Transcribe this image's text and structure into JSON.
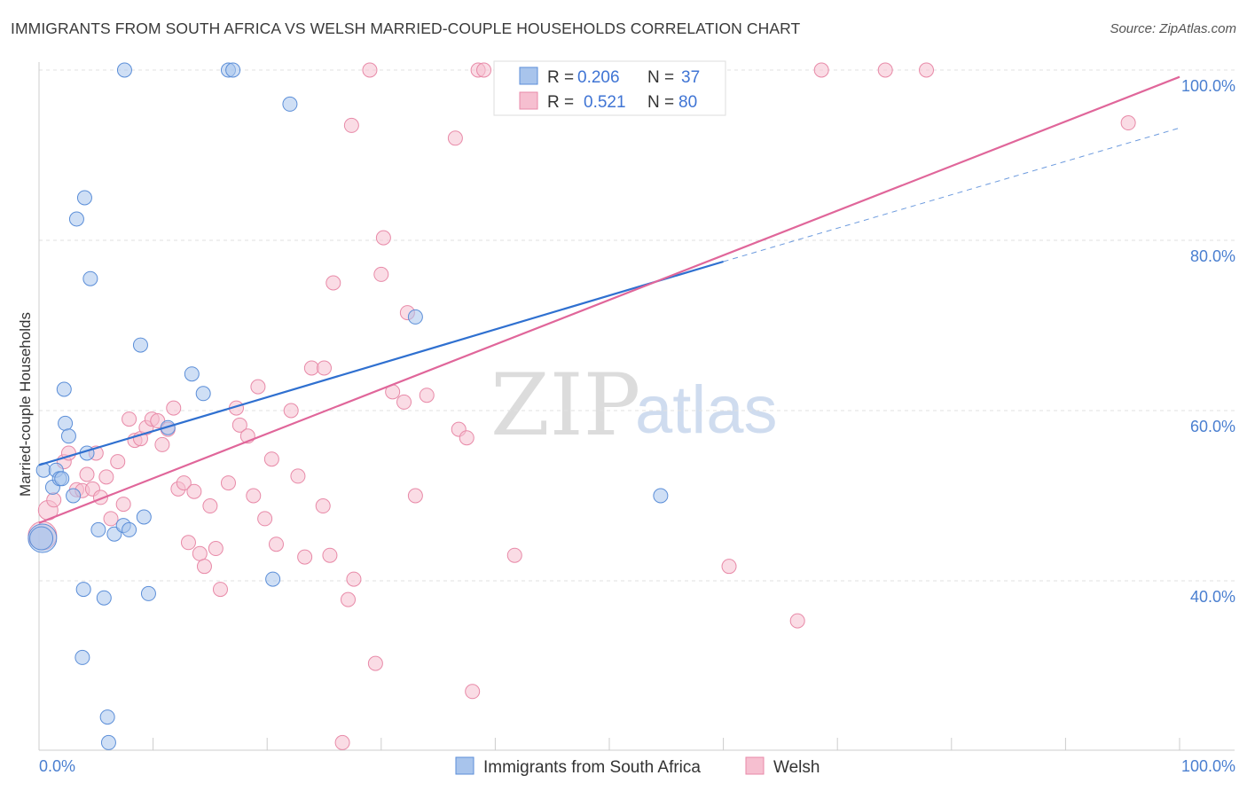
{
  "title": "IMMIGRANTS FROM SOUTH AFRICA VS WELSH MARRIED-COUPLE HOUSEHOLDS CORRELATION CHART",
  "source": "Source: ZipAtlas.com",
  "watermark": {
    "zip": "ZIP",
    "atlas": "atlas"
  },
  "legend": {
    "r_label": "R =",
    "n_label": "N =",
    "rows": [
      {
        "r": "0.206",
        "n": "37"
      },
      {
        "r": "0.521",
        "n": "80"
      }
    ]
  },
  "chart_data": {
    "type": "scatter",
    "title": "IMMIGRANTS FROM SOUTH AFRICA VS WELSH MARRIED-COUPLE HOUSEHOLDS CORRELATION CHART",
    "xlabel": "",
    "ylabel": "Married-couple Households",
    "xlim": [
      0,
      100
    ],
    "ylim": [
      20,
      102
    ],
    "x_ticks": [
      "0.0%",
      "100.0%"
    ],
    "y_ticks": [
      {
        "value": 40,
        "label": "40.0%"
      },
      {
        "value": 60,
        "label": "60.0%"
      },
      {
        "value": 80,
        "label": "80.0%"
      },
      {
        "value": 100,
        "label": "100.0%"
      }
    ],
    "grid": true,
    "legend_position": "bottom",
    "colors": {
      "blue_fill": "#a8c4ec",
      "blue_stroke": "#5b8ed8",
      "blue_line": "#2f70d0",
      "pink_fill": "#f6bfd0",
      "pink_stroke": "#e88aa8",
      "pink_line": "#e0669a",
      "tick_text": "#4a7fd0"
    },
    "series": [
      {
        "name": "Immigrants from South Africa",
        "r": 0.206,
        "n": 37,
        "trend": {
          "x0": 0,
          "y0": 53.6,
          "x1": 60,
          "y1": 77.5,
          "dashed_to_x": 100,
          "dashed_to_y": 93.2
        },
        "points": [
          [
            0.3,
            45.0,
            16
          ],
          [
            0.4,
            53.0,
            8
          ],
          [
            1.2,
            51.0,
            8
          ],
          [
            1.5,
            53.0,
            8
          ],
          [
            1.8,
            52.0,
            8
          ],
          [
            2.0,
            52.0,
            8
          ],
          [
            2.2,
            62.5,
            8
          ],
          [
            2.3,
            58.5,
            8
          ],
          [
            2.6,
            57.0,
            8
          ],
          [
            3.0,
            50.0,
            8
          ],
          [
            3.3,
            82.5,
            8
          ],
          [
            3.8,
            31.0,
            8
          ],
          [
            3.9,
            39.0,
            8
          ],
          [
            4.0,
            85.0,
            8
          ],
          [
            4.2,
            55.0,
            8
          ],
          [
            4.5,
            75.5,
            8
          ],
          [
            5.2,
            46.0,
            8
          ],
          [
            5.7,
            38.0,
            8
          ],
          [
            6.0,
            24.0,
            8
          ],
          [
            6.1,
            21.0,
            8
          ],
          [
            6.6,
            45.5,
            8
          ],
          [
            7.4,
            46.5,
            8
          ],
          [
            7.5,
            100.0,
            8
          ],
          [
            7.9,
            46.0,
            8
          ],
          [
            8.9,
            67.7,
            8
          ],
          [
            9.2,
            47.5,
            8
          ],
          [
            9.6,
            38.5,
            8
          ],
          [
            11.3,
            58.0,
            8
          ],
          [
            13.4,
            64.3,
            8
          ],
          [
            14.4,
            62.0,
            8
          ],
          [
            16.6,
            100.0,
            8
          ],
          [
            17.0,
            100.0,
            8
          ],
          [
            20.5,
            40.2,
            8
          ],
          [
            22.0,
            96.0,
            8
          ],
          [
            33.0,
            71.0,
            8
          ],
          [
            54.5,
            50.0,
            8
          ],
          [
            0.2,
            45.0,
            13
          ]
        ]
      },
      {
        "name": "Welsh",
        "r": 0.521,
        "n": 80,
        "trend": {
          "x0": 0,
          "y0": 46.8,
          "x1": 100,
          "y1": 99.2
        },
        "points": [
          [
            0.3,
            45.3,
            16
          ],
          [
            0.8,
            48.3,
            11
          ],
          [
            1.3,
            49.5,
            8
          ],
          [
            2.2,
            54.0,
            8
          ],
          [
            2.6,
            55.0,
            8
          ],
          [
            3.3,
            50.7,
            8
          ],
          [
            3.8,
            50.6,
            8
          ],
          [
            4.2,
            52.5,
            8
          ],
          [
            4.7,
            50.8,
            8
          ],
          [
            5.0,
            55.0,
            8
          ],
          [
            5.4,
            49.8,
            8
          ],
          [
            5.9,
            52.2,
            8
          ],
          [
            6.3,
            47.3,
            8
          ],
          [
            6.9,
            54.0,
            8
          ],
          [
            7.4,
            49.0,
            8
          ],
          [
            7.9,
            59.0,
            8
          ],
          [
            8.4,
            56.5,
            8
          ],
          [
            8.9,
            56.7,
            8
          ],
          [
            9.4,
            58.0,
            8
          ],
          [
            9.9,
            59.0,
            8
          ],
          [
            10.4,
            58.8,
            8
          ],
          [
            10.8,
            56.0,
            8
          ],
          [
            11.3,
            57.8,
            8
          ],
          [
            11.8,
            60.3,
            8
          ],
          [
            12.2,
            50.8,
            8
          ],
          [
            12.7,
            51.5,
            8
          ],
          [
            13.1,
            44.5,
            8
          ],
          [
            13.6,
            50.5,
            8
          ],
          [
            14.1,
            43.2,
            8
          ],
          [
            14.5,
            41.7,
            8
          ],
          [
            15.0,
            48.8,
            8
          ],
          [
            15.5,
            43.8,
            8
          ],
          [
            15.9,
            39.0,
            8
          ],
          [
            16.6,
            51.5,
            8
          ],
          [
            17.3,
            60.3,
            8
          ],
          [
            17.6,
            58.3,
            8
          ],
          [
            18.3,
            57.0,
            8
          ],
          [
            18.8,
            50.0,
            8
          ],
          [
            19.2,
            62.8,
            8
          ],
          [
            19.8,
            47.3,
            8
          ],
          [
            20.4,
            54.3,
            8
          ],
          [
            20.8,
            44.3,
            8
          ],
          [
            22.1,
            60.0,
            8
          ],
          [
            22.7,
            52.3,
            8
          ],
          [
            23.3,
            42.8,
            8
          ],
          [
            23.9,
            65.0,
            8
          ],
          [
            24.9,
            48.8,
            8
          ],
          [
            25.0,
            65.0,
            8
          ],
          [
            25.5,
            43.0,
            8
          ],
          [
            25.8,
            75.0,
            8
          ],
          [
            26.6,
            21.0,
            8
          ],
          [
            27.1,
            37.8,
            8
          ],
          [
            27.4,
            93.5,
            8
          ],
          [
            27.6,
            40.2,
            8
          ],
          [
            29.0,
            100.0,
            8
          ],
          [
            29.5,
            30.3,
            8
          ],
          [
            30.0,
            76.0,
            8
          ],
          [
            30.2,
            80.3,
            8
          ],
          [
            31.0,
            62.2,
            8
          ],
          [
            32.0,
            61.0,
            8
          ],
          [
            32.3,
            71.5,
            8
          ],
          [
            33.0,
            50.0,
            8
          ],
          [
            34.0,
            61.8,
            8
          ],
          [
            36.5,
            92.0,
            8
          ],
          [
            36.8,
            57.8,
            8
          ],
          [
            37.5,
            56.8,
            8
          ],
          [
            38.0,
            27.0,
            8
          ],
          [
            38.5,
            100.0,
            8
          ],
          [
            39.0,
            100.0,
            8
          ],
          [
            41.0,
            100.0,
            8
          ],
          [
            41.7,
            43.0,
            8
          ],
          [
            44.4,
            100.0,
            8
          ],
          [
            47.0,
            100.0,
            8
          ],
          [
            50.1,
            100.0,
            8
          ],
          [
            60.5,
            41.7,
            8
          ],
          [
            66.5,
            35.3,
            8
          ],
          [
            68.6,
            100.0,
            8
          ],
          [
            74.2,
            100.0,
            8
          ],
          [
            77.8,
            100.0,
            8
          ],
          [
            95.5,
            93.8,
            8
          ]
        ]
      }
    ]
  }
}
